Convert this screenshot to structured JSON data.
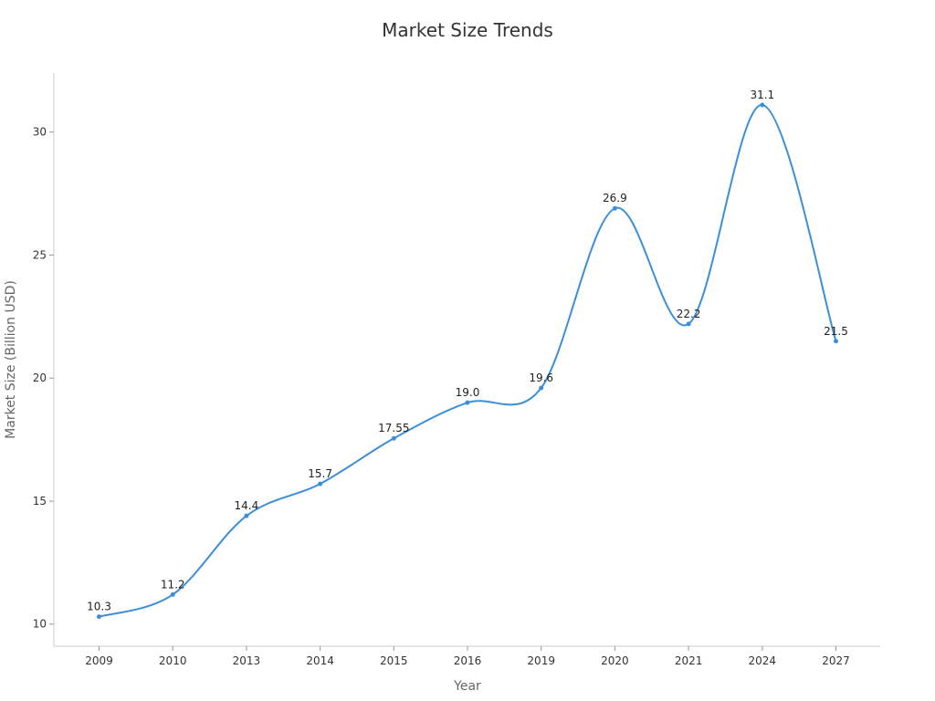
{
  "chart_data": {
    "type": "line",
    "title": "Market Size Trends",
    "xlabel": "Year",
    "ylabel": "Market Size (Billion USD)",
    "categories": [
      "2009",
      "2010",
      "2013",
      "2014",
      "2015",
      "2016",
      "2019",
      "2020",
      "2021",
      "2024",
      "2027"
    ],
    "series": [
      {
        "values": [
          10.3,
          11.2,
          14.4,
          15.7,
          17.55,
          19.0,
          19.6,
          26.9,
          22.2,
          31.1,
          21.5
        ],
        "labels": [
          "10.3",
          "11.2",
          "14.4",
          "15.7",
          "17.55",
          "19.0",
          "19.6",
          "26.9",
          "22.2",
          "31.1",
          "21.5"
        ],
        "color": "#3b8fd9"
      }
    ],
    "ylim": [
      9.1,
      32.4
    ],
    "yticks": [
      "10",
      "15",
      "20",
      "25",
      "30"
    ],
    "grid": false,
    "smooth": true
  }
}
